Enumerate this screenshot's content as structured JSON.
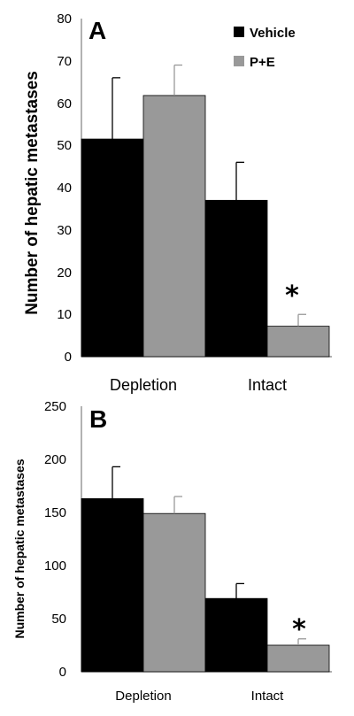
{
  "chart_data": [
    {
      "type": "bar",
      "panel_label": "A",
      "ylabel": "Number of hepatic metastases",
      "categories": [
        "Depletion",
        "Intact"
      ],
      "ylim": [
        0,
        80
      ],
      "yticks": [
        "0",
        "10",
        "20",
        "30",
        "40",
        "50",
        "60",
        "70",
        "80"
      ],
      "series": [
        {
          "name": "Vehicle",
          "color": "#000000",
          "values": [
            51.5,
            37
          ],
          "errors": [
            14.5,
            9
          ]
        },
        {
          "name": "P+E",
          "color": "#999999",
          "values": [
            61.8,
            7.2
          ],
          "errors": [
            7.2,
            2.8
          ]
        }
      ],
      "annotation": "*",
      "legend": "top-right",
      "grid": false
    },
    {
      "type": "bar",
      "panel_label": "B",
      "ylabel": "Number of hepatic metastases",
      "categories": [
        "Depletion",
        "Intact"
      ],
      "ylim": [
        0,
        250
      ],
      "yticks": [
        "0",
        "50",
        "100",
        "150",
        "200",
        "250"
      ],
      "series": [
        {
          "name": "Vehicle",
          "color": "#000000",
          "values": [
            163,
            69
          ],
          "errors": [
            30,
            14
          ]
        },
        {
          "name": "P+E",
          "color": "#999999",
          "values": [
            149,
            25
          ],
          "errors": [
            16,
            6
          ]
        }
      ],
      "annotation": "*",
      "grid": false
    }
  ]
}
